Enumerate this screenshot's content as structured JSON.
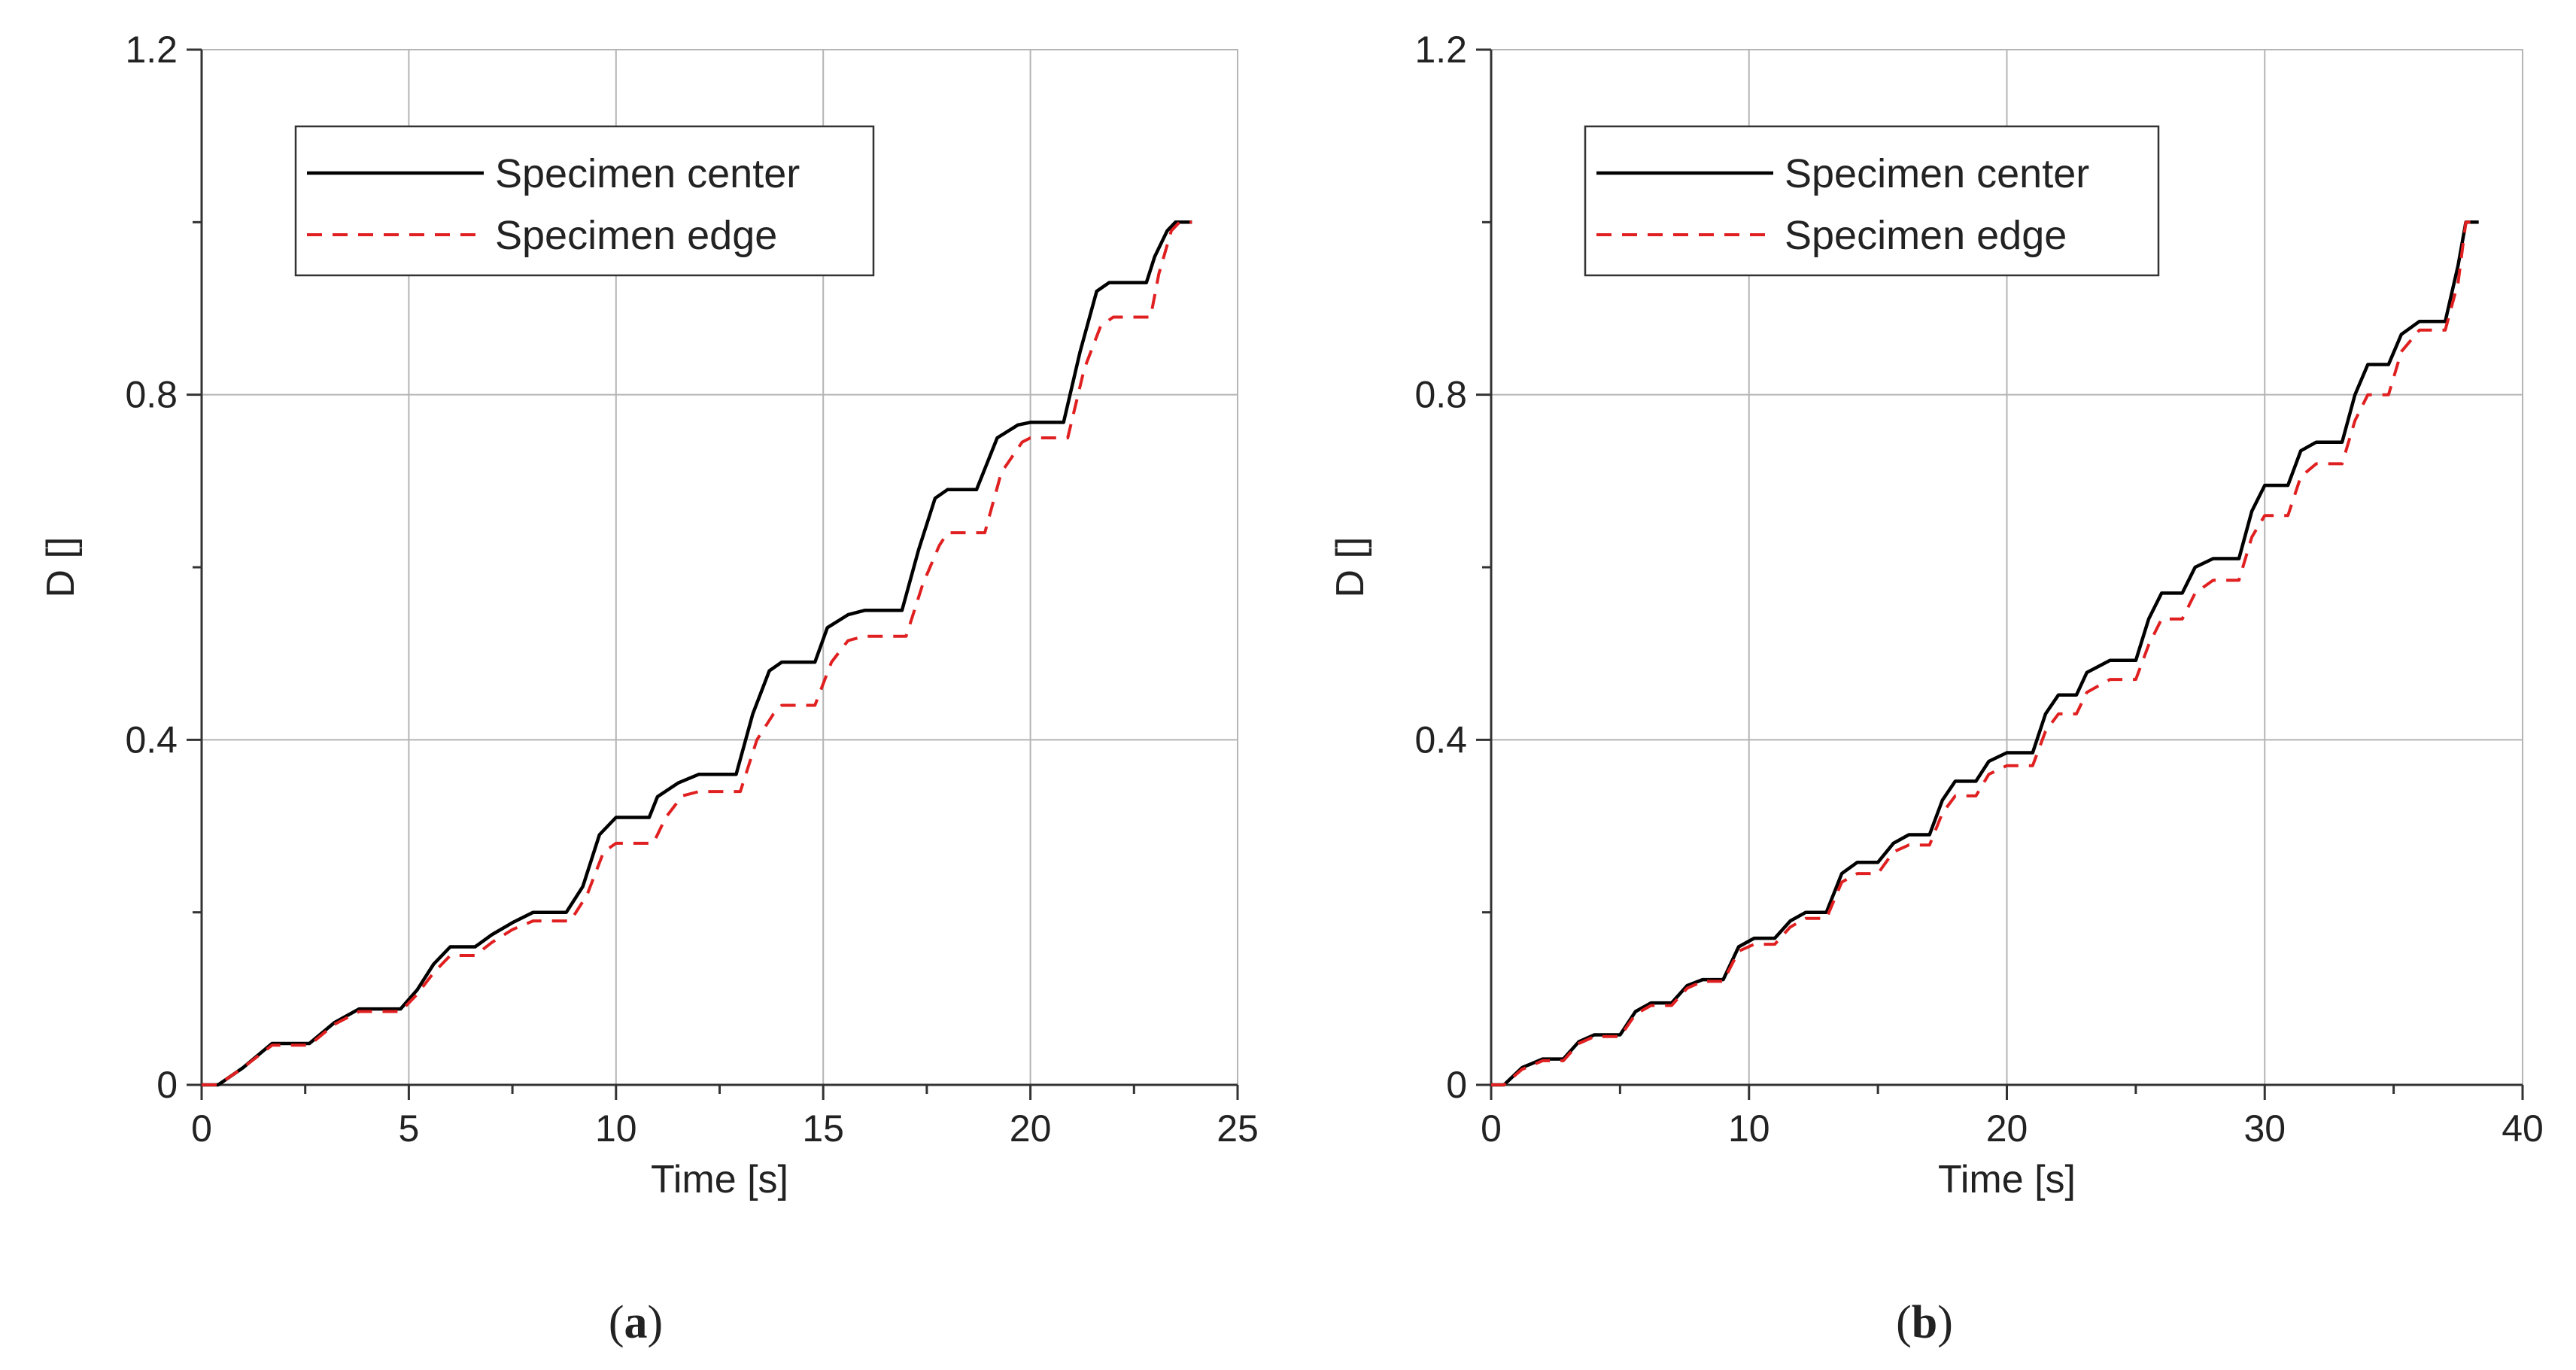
{
  "chart_data": [
    {
      "type": "line",
      "panel_label": "a",
      "xlabel": "Time [s]",
      "ylabel": "D []",
      "xlim": [
        0,
        25
      ],
      "ylim": [
        0,
        1.2
      ],
      "xticks": [
        0,
        5,
        10,
        15,
        20,
        25
      ],
      "xtick_labels": [
        "0",
        "5",
        "10",
        "15",
        "20",
        "25"
      ],
      "yticks": [
        0,
        0.4,
        0.8,
        1.2
      ],
      "ytick_labels": [
        "0",
        "0.4",
        "0.8",
        "1.2"
      ],
      "minor_yticks": [
        0.2,
        0.6,
        1.0
      ],
      "grid": true,
      "legend_position": "top-left",
      "series": [
        {
          "name": "Specimen center",
          "color": "#000000",
          "style": "solid",
          "points": [
            [
              0,
              0
            ],
            [
              0.4,
              0
            ],
            [
              1.0,
              0.02
            ],
            [
              1.7,
              0.048
            ],
            [
              2.6,
              0.048
            ],
            [
              3.2,
              0.072
            ],
            [
              3.8,
              0.088
            ],
            [
              4.8,
              0.088
            ],
            [
              5.2,
              0.11
            ],
            [
              5.6,
              0.14
            ],
            [
              6.0,
              0.16
            ],
            [
              6.6,
              0.16
            ],
            [
              7.0,
              0.174
            ],
            [
              7.5,
              0.188
            ],
            [
              8.0,
              0.2
            ],
            [
              8.8,
              0.2
            ],
            [
              9.2,
              0.23
            ],
            [
              9.6,
              0.29
            ],
            [
              10.0,
              0.31
            ],
            [
              10.8,
              0.31
            ],
            [
              11.0,
              0.334
            ],
            [
              11.5,
              0.35
            ],
            [
              12.0,
              0.36
            ],
            [
              12.9,
              0.36
            ],
            [
              13.3,
              0.43
            ],
            [
              13.7,
              0.48
            ],
            [
              14.0,
              0.49
            ],
            [
              14.8,
              0.49
            ],
            [
              15.1,
              0.53
            ],
            [
              15.6,
              0.545
            ],
            [
              16.0,
              0.55
            ],
            [
              16.9,
              0.55
            ],
            [
              17.3,
              0.62
            ],
            [
              17.7,
              0.68
            ],
            [
              18.0,
              0.69
            ],
            [
              18.7,
              0.69
            ],
            [
              19.2,
              0.75
            ],
            [
              19.7,
              0.765
            ],
            [
              20.0,
              0.768
            ],
            [
              20.8,
              0.768
            ],
            [
              21.2,
              0.85
            ],
            [
              21.6,
              0.92
            ],
            [
              21.9,
              0.93
            ],
            [
              22.8,
              0.93
            ],
            [
              23.0,
              0.96
            ],
            [
              23.3,
              0.99
            ],
            [
              23.5,
              1.0
            ],
            [
              23.9,
              1.0
            ]
          ]
        },
        {
          "name": "Specimen edge",
          "color": "#e02020",
          "style": "dashed",
          "points": [
            [
              0,
              0
            ],
            [
              0.4,
              0
            ],
            [
              1.0,
              0.02
            ],
            [
              1.7,
              0.046
            ],
            [
              2.6,
              0.046
            ],
            [
              3.2,
              0.07
            ],
            [
              3.8,
              0.085
            ],
            [
              4.8,
              0.085
            ],
            [
              5.2,
              0.105
            ],
            [
              5.6,
              0.13
            ],
            [
              6.0,
              0.15
            ],
            [
              6.6,
              0.15
            ],
            [
              7.0,
              0.165
            ],
            [
              7.5,
              0.18
            ],
            [
              8.0,
              0.19
            ],
            [
              8.9,
              0.19
            ],
            [
              9.3,
              0.22
            ],
            [
              9.7,
              0.27
            ],
            [
              10.0,
              0.28
            ],
            [
              10.9,
              0.28
            ],
            [
              11.2,
              0.31
            ],
            [
              11.6,
              0.335
            ],
            [
              12.0,
              0.34
            ],
            [
              13.0,
              0.34
            ],
            [
              13.4,
              0.4
            ],
            [
              13.8,
              0.43
            ],
            [
              14.0,
              0.44
            ],
            [
              14.8,
              0.44
            ],
            [
              15.2,
              0.49
            ],
            [
              15.6,
              0.515
            ],
            [
              16.0,
              0.52
            ],
            [
              17.0,
              0.52
            ],
            [
              17.4,
              0.58
            ],
            [
              17.8,
              0.625
            ],
            [
              18.0,
              0.64
            ],
            [
              18.9,
              0.64
            ],
            [
              19.3,
              0.71
            ],
            [
              19.8,
              0.745
            ],
            [
              20.0,
              0.75
            ],
            [
              20.9,
              0.75
            ],
            [
              21.3,
              0.83
            ],
            [
              21.7,
              0.88
            ],
            [
              22.0,
              0.89
            ],
            [
              22.9,
              0.89
            ],
            [
              23.1,
              0.94
            ],
            [
              23.4,
              0.99
            ],
            [
              23.6,
              1.0
            ],
            [
              23.9,
              1.0
            ]
          ]
        }
      ],
      "legend": [
        "Specimen center",
        "Specimen edge"
      ]
    },
    {
      "type": "line",
      "panel_label": "b",
      "xlabel": "Time [s]",
      "ylabel": "D []",
      "xlim": [
        0,
        40
      ],
      "ylim": [
        0,
        1.2
      ],
      "xticks": [
        0,
        10,
        20,
        30,
        40
      ],
      "xtick_labels": [
        "0",
        "10",
        "20",
        "30",
        "40"
      ],
      "yticks": [
        0,
        0.4,
        0.8,
        1.2
      ],
      "ytick_labels": [
        "0",
        "0.4",
        "0.8",
        "1.2"
      ],
      "minor_yticks": [
        0.2,
        0.6,
        1.0
      ],
      "grid": true,
      "legend_position": "top-left",
      "series": [
        {
          "name": "Specimen center",
          "color": "#000000",
          "style": "solid",
          "points": [
            [
              0,
              0
            ],
            [
              0.5,
              0
            ],
            [
              1.2,
              0.02
            ],
            [
              2.0,
              0.03
            ],
            [
              2.8,
              0.03
            ],
            [
              3.4,
              0.05
            ],
            [
              4.0,
              0.058
            ],
            [
              5.0,
              0.058
            ],
            [
              5.6,
              0.085
            ],
            [
              6.2,
              0.095
            ],
            [
              7.0,
              0.095
            ],
            [
              7.6,
              0.115
            ],
            [
              8.2,
              0.122
            ],
            [
              9.0,
              0.122
            ],
            [
              9.6,
              0.16
            ],
            [
              10.2,
              0.17
            ],
            [
              11.0,
              0.17
            ],
            [
              11.6,
              0.19
            ],
            [
              12.2,
              0.2
            ],
            [
              13.0,
              0.2
            ],
            [
              13.6,
              0.245
            ],
            [
              14.2,
              0.258
            ],
            [
              15.0,
              0.258
            ],
            [
              15.6,
              0.28
            ],
            [
              16.2,
              0.29
            ],
            [
              17.0,
              0.29
            ],
            [
              17.5,
              0.33
            ],
            [
              18.0,
              0.352
            ],
            [
              18.8,
              0.352
            ],
            [
              19.3,
              0.375
            ],
            [
              20.0,
              0.385
            ],
            [
              21.0,
              0.385
            ],
            [
              21.5,
              0.43
            ],
            [
              22.0,
              0.452
            ],
            [
              22.7,
              0.452
            ],
            [
              23.1,
              0.478
            ],
            [
              24.0,
              0.492
            ],
            [
              25.0,
              0.492
            ],
            [
              25.5,
              0.54
            ],
            [
              26.0,
              0.57
            ],
            [
              26.8,
              0.57
            ],
            [
              27.3,
              0.6
            ],
            [
              28.0,
              0.61
            ],
            [
              29.0,
              0.61
            ],
            [
              29.5,
              0.665
            ],
            [
              30.0,
              0.695
            ],
            [
              30.9,
              0.695
            ],
            [
              31.4,
              0.735
            ],
            [
              32.0,
              0.745
            ],
            [
              33.0,
              0.745
            ],
            [
              33.5,
              0.8
            ],
            [
              34.0,
              0.835
            ],
            [
              34.8,
              0.835
            ],
            [
              35.3,
              0.87
            ],
            [
              36.0,
              0.885
            ],
            [
              37.0,
              0.885
            ],
            [
              37.5,
              0.95
            ],
            [
              37.8,
              1.0
            ],
            [
              38.3,
              1.0
            ]
          ]
        },
        {
          "name": "Specimen edge",
          "color": "#e02020",
          "style": "dashed",
          "points": [
            [
              0,
              0
            ],
            [
              0.5,
              0
            ],
            [
              1.2,
              0.018
            ],
            [
              2.0,
              0.028
            ],
            [
              2.8,
              0.028
            ],
            [
              3.4,
              0.048
            ],
            [
              4.0,
              0.056
            ],
            [
              5.0,
              0.056
            ],
            [
              5.6,
              0.082
            ],
            [
              6.2,
              0.092
            ],
            [
              7.0,
              0.092
            ],
            [
              7.6,
              0.112
            ],
            [
              8.2,
              0.12
            ],
            [
              9.0,
              0.12
            ],
            [
              9.6,
              0.155
            ],
            [
              10.2,
              0.163
            ],
            [
              11.0,
              0.163
            ],
            [
              11.6,
              0.183
            ],
            [
              12.2,
              0.193
            ],
            [
              13.0,
              0.193
            ],
            [
              13.6,
              0.235
            ],
            [
              14.2,
              0.245
            ],
            [
              15.0,
              0.245
            ],
            [
              15.6,
              0.27
            ],
            [
              16.2,
              0.278
            ],
            [
              17.0,
              0.278
            ],
            [
              17.5,
              0.315
            ],
            [
              18.0,
              0.335
            ],
            [
              18.8,
              0.335
            ],
            [
              19.3,
              0.36
            ],
            [
              20.0,
              0.37
            ],
            [
              21.0,
              0.37
            ],
            [
              21.5,
              0.41
            ],
            [
              22.0,
              0.43
            ],
            [
              22.7,
              0.43
            ],
            [
              23.1,
              0.455
            ],
            [
              24.0,
              0.47
            ],
            [
              25.0,
              0.47
            ],
            [
              25.5,
              0.51
            ],
            [
              26.0,
              0.54
            ],
            [
              26.8,
              0.54
            ],
            [
              27.3,
              0.57
            ],
            [
              28.0,
              0.585
            ],
            [
              29.0,
              0.585
            ],
            [
              29.5,
              0.635
            ],
            [
              30.0,
              0.66
            ],
            [
              30.9,
              0.66
            ],
            [
              31.4,
              0.705
            ],
            [
              32.0,
              0.72
            ],
            [
              33.0,
              0.72
            ],
            [
              33.5,
              0.77
            ],
            [
              34.0,
              0.8
            ],
            [
              34.8,
              0.8
            ],
            [
              35.3,
              0.85
            ],
            [
              36.0,
              0.875
            ],
            [
              37.0,
              0.875
            ],
            [
              37.5,
              0.93
            ],
            [
              37.8,
              1.0
            ],
            [
              38.3,
              1.0
            ]
          ]
        }
      ],
      "legend": [
        "Specimen center",
        "Specimen edge"
      ]
    }
  ]
}
